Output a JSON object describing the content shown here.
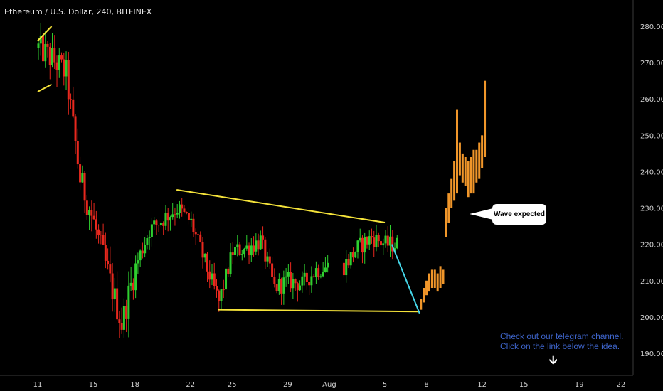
{
  "header": {
    "symbol_title": "Ethereum / U.S. Dollar, 240, BITFINEX"
  },
  "annotations": {
    "callout_text": "Wave expected",
    "promo_line1": "Check out our telegram channel.",
    "promo_line2": "Click on the link below the idea."
  },
  "colors": {
    "background": "#000000",
    "up_candle": "#2fcf2f",
    "down_candle": "#e8281e",
    "forecast_bar": "#f0962a",
    "trendline": "#f5e33a",
    "forecast_line": "#45d6e8",
    "axis_text": "#cfcfcf",
    "promo_text": "#3d63c8"
  },
  "chart_data": {
    "type": "candlestick",
    "title": "Ethereum / U.S. Dollar, 240, BITFINEX",
    "xlabel": "",
    "ylabel": "",
    "ylim": [
      186,
      288
    ],
    "x_ticks": [
      "11",
      "15",
      "18",
      "22",
      "25",
      "29",
      "Aug",
      "5",
      "8",
      "12",
      "15",
      "19",
      "22"
    ],
    "y_ticks": [
      190,
      200,
      210,
      220,
      230,
      240,
      250,
      260,
      270,
      280
    ],
    "y_tick_labels": [
      "190.00",
      "200.00",
      "210.00",
      "220.00",
      "230.00",
      "240.00",
      "250.00",
      "260.00",
      "270.00",
      "280.00"
    ],
    "grid": false,
    "legend": "none",
    "price_path_daily": [
      {
        "day": "Jul 11",
        "price": 274
      },
      {
        "day": "Jul 12",
        "price": 271
      },
      {
        "day": "Jul 13",
        "price": 267
      },
      {
        "day": "Jul 14",
        "price": 238
      },
      {
        "day": "Jul 15",
        "price": 226
      },
      {
        "day": "Jul 16",
        "price": 212
      },
      {
        "day": "Jul 17",
        "price": 198
      },
      {
        "day": "Jul 18",
        "price": 214
      },
      {
        "day": "Jul 19",
        "price": 224
      },
      {
        "day": "Jul 20",
        "price": 227
      },
      {
        "day": "Jul 21",
        "price": 230
      },
      {
        "day": "Jul 22",
        "price": 226
      },
      {
        "day": "Jul 23",
        "price": 215
      },
      {
        "day": "Jul 24",
        "price": 204
      },
      {
        "day": "Jul 25",
        "price": 218
      },
      {
        "day": "Jul 26",
        "price": 219
      },
      {
        "day": "Jul 27",
        "price": 221
      },
      {
        "day": "Jul 28",
        "price": 208
      },
      {
        "day": "Jul 29",
        "price": 210
      },
      {
        "day": "Jul 30",
        "price": 209
      },
      {
        "day": "Jul 31",
        "price": 213
      },
      {
        "day": "Aug 1",
        "price": 214
      },
      {
        "day": "Aug 2",
        "price": 219
      },
      {
        "day": "Aug 3",
        "price": 222
      },
      {
        "day": "Aug 4",
        "price": 220
      }
    ],
    "trendlines": [
      {
        "name": "",
        "from": {
          "day": "Jul 21",
          "price": 235
        },
        "to": {
          "day": "Aug 4",
          "price": 226
        }
      },
      {
        "name": "",
        "from": {
          "day": "Jul 24",
          "price": 202
        },
        "to": {
          "day": "Aug 6.5",
          "price": 201.5
        }
      },
      {
        "name": "",
        "from": {
          "day": "Jul 11",
          "price": 276
        },
        "to": {
          "day": "Jul 12",
          "price": 280
        }
      },
      {
        "name": "",
        "from": {
          "day": "Jul 11",
          "price": 262
        },
        "to": {
          "day": "Jul 12",
          "price": 264
        }
      }
    ],
    "forecast_line": {
      "from": {
        "day": "Aug 4.5",
        "price": 220
      },
      "to": {
        "day": "Aug 6.5",
        "price": 201
      }
    },
    "forecast_bars": [
      {
        "day": "Aug 6.6",
        "low": 202,
        "high": 205
      },
      {
        "day": "Aug 6.8",
        "low": 204,
        "high": 208
      },
      {
        "day": "Aug 7.0",
        "low": 206,
        "high": 210
      },
      {
        "day": "Aug 7.2",
        "low": 207,
        "high": 212
      },
      {
        "day": "Aug 7.4",
        "low": 208,
        "high": 213
      },
      {
        "day": "Aug 7.6",
        "low": 208,
        "high": 213
      },
      {
        "day": "Aug 7.8",
        "low": 207,
        "high": 212
      },
      {
        "day": "Aug 8.0",
        "low": 208,
        "high": 214
      },
      {
        "day": "Aug 8.2",
        "low": 209,
        "high": 213
      },
      {
        "day": "Aug 8.4",
        "low": 222,
        "high": 230
      },
      {
        "day": "Aug 8.6",
        "low": 226,
        "high": 234
      },
      {
        "day": "Aug 8.8",
        "low": 230,
        "high": 238
      },
      {
        "day": "Aug 9.0",
        "low": 232,
        "high": 243
      },
      {
        "day": "Aug 9.2",
        "low": 234,
        "high": 257
      },
      {
        "day": "Aug 9.4",
        "low": 239,
        "high": 248
      },
      {
        "day": "Aug 9.6",
        "low": 237,
        "high": 245
      },
      {
        "day": "Aug 9.8",
        "low": 236,
        "high": 244
      },
      {
        "day": "Aug 10.0",
        "low": 233,
        "high": 243
      },
      {
        "day": "Aug 10.2",
        "low": 234,
        "high": 244
      },
      {
        "day": "Aug 10.4",
        "low": 234,
        "high": 246
      },
      {
        "day": "Aug 10.6",
        "low": 237,
        "high": 246
      },
      {
        "day": "Aug 10.8",
        "low": 238,
        "high": 248
      },
      {
        "day": "Aug 11.0",
        "low": 241,
        "high": 250
      },
      {
        "day": "Aug 11.2",
        "low": 244,
        "high": 265
      }
    ]
  }
}
